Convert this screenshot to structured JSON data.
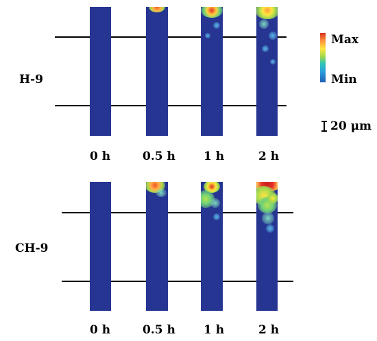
{
  "panels": {
    "top": {
      "sample_label": "H-9",
      "time_labels": [
        "0 h",
        "0.5 h",
        "1 h",
        "2 h"
      ]
    },
    "bottom": {
      "sample_label": "CH-9",
      "time_labels": [
        "0 h",
        "0.5 h",
        "1 h",
        "2 h"
      ]
    }
  },
  "legend": {
    "max_label": "Max",
    "min_label": "Min",
    "colors": [
      "#d7301f",
      "#fc8d3c",
      "#ffe640",
      "#9fd84f",
      "#2ec4b6",
      "#2c9fdc",
      "#1f5fb4"
    ]
  },
  "scale_bar": {
    "label": "20 μm"
  },
  "colors": {
    "strip_background": "#263592",
    "line": "#000000"
  }
}
